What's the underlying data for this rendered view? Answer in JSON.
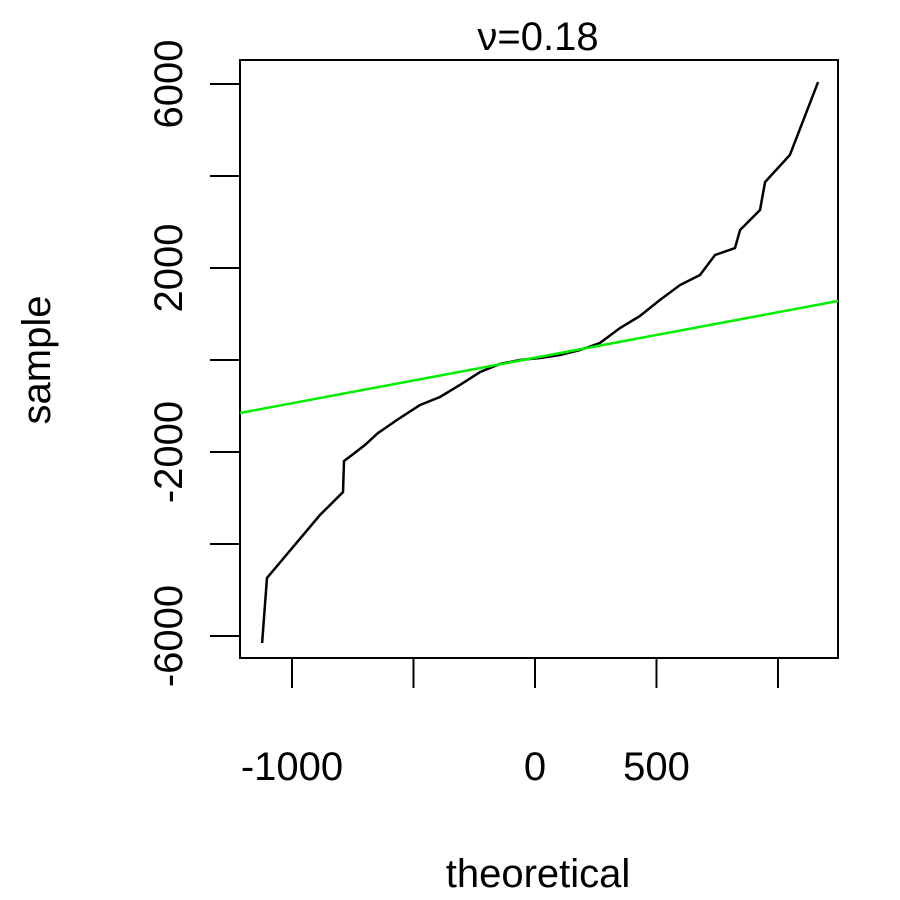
{
  "chart_data": {
    "type": "line",
    "title": "ν=0.18",
    "x_label": "theoretical",
    "y_label": "sample",
    "series": [
      {
        "color": "#000000",
        "x": [
          -1123,
          -1103,
          -885,
          -864,
          -790,
          -786,
          -753,
          -700,
          -646,
          -556,
          -473,
          -391,
          -309,
          -226,
          -144,
          -62,
          21,
          103,
          185,
          267,
          350,
          432,
          514,
          597,
          679,
          741,
          823,
          844,
          926,
          947,
          1049,
          1165
        ],
        "values": [
          -6152,
          -4739,
          -3370,
          -3261,
          -2870,
          -2196,
          -2065,
          -1848,
          -1587,
          -1261,
          -978,
          -804,
          -543,
          -261,
          -87,
          0,
          43,
          109,
          217,
          370,
          696,
          957,
          1304,
          1630,
          1848,
          2283,
          2435,
          2826,
          3261,
          3870,
          4457,
          6043
        ]
      },
      {
        "color": "#00ee00",
        "x": [
          -1214,
          1247
        ],
        "values": [
          -1152,
          1283
        ]
      }
    ],
    "xlim": [
      -1214,
      1247
    ],
    "ylim": [
      -6478,
      6522
    ],
    "xticks": [
      -1000,
      {
        "value": -500,
        "label": null
      },
      0,
      500,
      {
        "value": 1000,
        "label": null
      }
    ],
    "yticks": [
      -6000,
      {
        "value": -4000,
        "label": null
      },
      -2000,
      {
        "value": 0,
        "label": null
      },
      2000,
      {
        "value": 4000,
        "label": null
      },
      6000
    ]
  }
}
